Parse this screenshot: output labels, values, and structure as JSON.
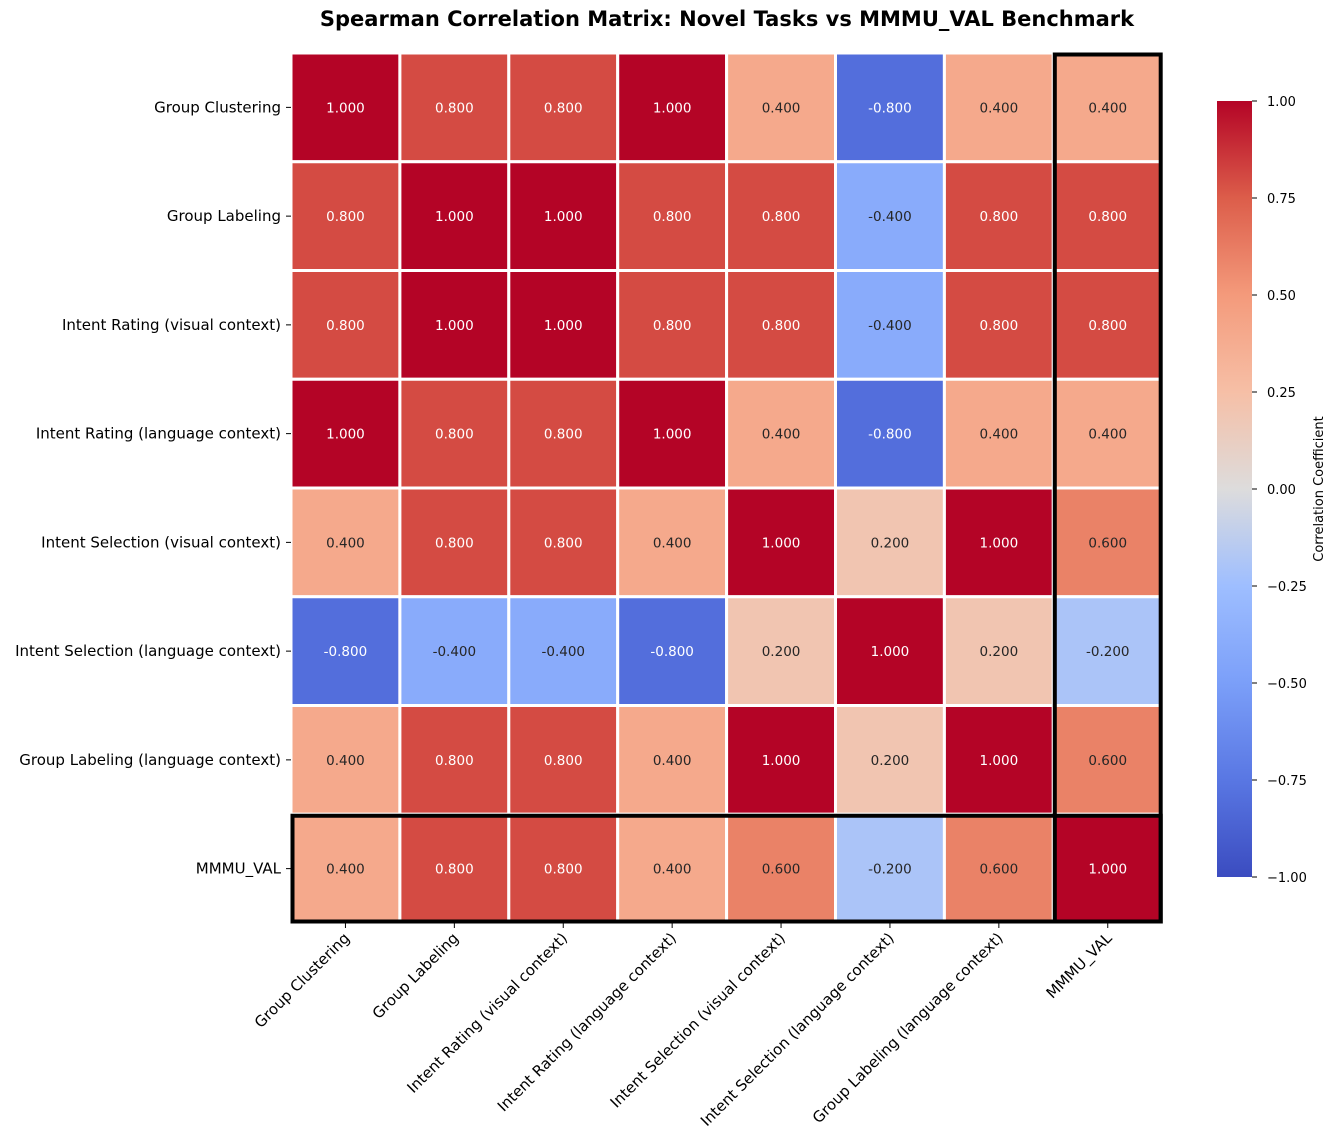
{
  "chart_data": {
    "type": "heatmap",
    "title": "Spearman Correlation Matrix: Novel Tasks vs MMMU_VAL Benchmark",
    "rows": [
      "Group Clustering",
      "Group Labeling",
      "Intent Rating (visual context)",
      "Intent Rating (language context)",
      "Intent Selection (visual context)",
      "Intent Selection (language context)",
      "Group Labeling (language context)",
      "MMMU_VAL"
    ],
    "columns": [
      "Group Clustering",
      "Group Labeling",
      "Intent Rating (visual context)",
      "Intent Rating (language context)",
      "Intent Selection (visual context)",
      "Intent Selection (language context)",
      "Group Labeling (language context)",
      "MMMU_VAL"
    ],
    "values": [
      [
        1.0,
        0.8,
        0.8,
        1.0,
        0.4,
        -0.8,
        0.4,
        0.4
      ],
      [
        0.8,
        1.0,
        1.0,
        0.8,
        0.8,
        -0.4,
        0.8,
        0.8
      ],
      [
        0.8,
        1.0,
        1.0,
        0.8,
        0.8,
        -0.4,
        0.8,
        0.8
      ],
      [
        1.0,
        0.8,
        0.8,
        1.0,
        0.4,
        -0.8,
        0.4,
        0.4
      ],
      [
        0.4,
        0.8,
        0.8,
        0.4,
        1.0,
        0.2,
        1.0,
        0.6
      ],
      [
        -0.8,
        -0.4,
        -0.4,
        -0.8,
        0.2,
        1.0,
        0.2,
        -0.2
      ],
      [
        0.4,
        0.8,
        0.8,
        0.4,
        1.0,
        0.2,
        1.0,
        0.6
      ],
      [
        0.4,
        0.8,
        0.8,
        0.4,
        0.6,
        -0.2,
        0.6,
        1.0
      ]
    ],
    "value_format_decimals": 3,
    "colormap": "coolwarm",
    "vmin": -1.0,
    "vmax": 1.0,
    "highlight": {
      "row": "MMMU_VAL",
      "column": "MMMU_VAL",
      "color": "#000000"
    },
    "colorbar": {
      "label": "Correlation Coefficient",
      "ticks": [
        "1.00",
        "0.75",
        "0.50",
        "0.25",
        "0.00",
        "−0.25",
        "−0.50",
        "−0.75",
        "−1.00"
      ],
      "tick_values": [
        1.0,
        0.75,
        0.5,
        0.25,
        0.0,
        -0.25,
        -0.5,
        -0.75,
        -1.0
      ],
      "placement": "right"
    },
    "cell_border_color": "#ffffff"
  }
}
